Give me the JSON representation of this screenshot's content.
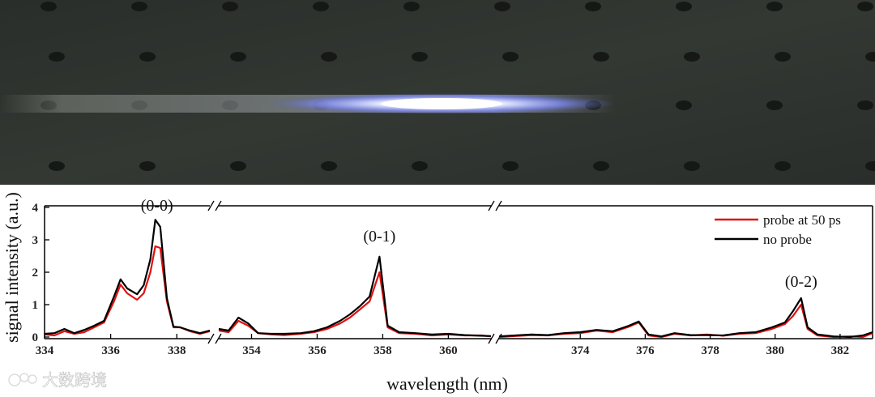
{
  "watermark": "大数跨境",
  "chart_data": {
    "type": "line",
    "xlabel": "wavelength (nm)",
    "ylabel": "signal intensity (a.u.)",
    "ylim": [
      0,
      4
    ],
    "yticks": [
      0,
      1,
      2,
      3,
      4
    ],
    "grid": false,
    "legend_position": "top-right",
    "colors": {
      "probe at 50 ps": "#e01010",
      "no probe": "#000000"
    },
    "panels": [
      {
        "xlim": [
          334,
          339
        ],
        "xticks": [
          334,
          336,
          338
        ]
      },
      {
        "xlim": [
          353,
          361.3
        ],
        "xticks": [
          354,
          356,
          358,
          360
        ]
      },
      {
        "xlim": [
          371.5,
          383
        ],
        "xticks": [
          374,
          376,
          378,
          380,
          382
        ]
      }
    ],
    "annotations": [
      {
        "text": "(0-0)",
        "x": 337.4,
        "y": 3.9
      },
      {
        "text": "(0-1)",
        "x": 357.9,
        "y": 2.95
      },
      {
        "text": "(0-2)",
        "x": 380.8,
        "y": 1.55
      }
    ],
    "series": [
      {
        "name": "probe at 50 ps",
        "segments": [
          [
            [
              334,
              0.08
            ],
            [
              334.3,
              0.05
            ],
            [
              334.6,
              0.18
            ],
            [
              334.9,
              0.1
            ],
            [
              335.2,
              0.15
            ],
            [
              335.5,
              0.3
            ],
            [
              335.8,
              0.45
            ],
            [
              336.1,
              1.1
            ],
            [
              336.3,
              1.62
            ],
            [
              336.5,
              1.35
            ],
            [
              336.8,
              1.15
            ],
            [
              337.0,
              1.35
            ],
            [
              337.2,
              2.0
            ],
            [
              337.35,
              2.8
            ],
            [
              337.5,
              2.75
            ],
            [
              337.7,
              1.1
            ],
            [
              337.9,
              0.3
            ],
            [
              338.1,
              0.3
            ],
            [
              338.4,
              0.18
            ],
            [
              338.7,
              0.1
            ],
            [
              339,
              0.18
            ]
          ],
          [
            [
              353,
              0.2
            ],
            [
              353.3,
              0.15
            ],
            [
              353.6,
              0.5
            ],
            [
              353.9,
              0.35
            ],
            [
              354.2,
              0.12
            ],
            [
              354.6,
              0.08
            ],
            [
              355.0,
              0.06
            ],
            [
              355.5,
              0.1
            ],
            [
              355.9,
              0.15
            ],
            [
              356.3,
              0.25
            ],
            [
              356.7,
              0.42
            ],
            [
              357.0,
              0.6
            ],
            [
              357.3,
              0.85
            ],
            [
              357.6,
              1.1
            ],
            [
              357.9,
              2.0
            ],
            [
              358.15,
              0.3
            ],
            [
              358.5,
              0.12
            ],
            [
              359.0,
              0.1
            ],
            [
              359.5,
              0.05
            ],
            [
              360.0,
              0.08
            ],
            [
              360.5,
              0.05
            ],
            [
              361.0,
              0.05
            ],
            [
              361.3,
              0.02
            ]
          ],
          [
            [
              371.5,
              0.0
            ],
            [
              372.0,
              0.03
            ],
            [
              372.5,
              0.06
            ],
            [
              373.0,
              0.05
            ],
            [
              373.5,
              0.1
            ],
            [
              374.0,
              0.12
            ],
            [
              374.5,
              0.2
            ],
            [
              375.0,
              0.15
            ],
            [
              375.5,
              0.32
            ],
            [
              375.8,
              0.45
            ],
            [
              376.1,
              0.05
            ],
            [
              376.5,
              0.0
            ],
            [
              376.9,
              0.1
            ],
            [
              377.4,
              0.05
            ],
            [
              377.9,
              0.08
            ],
            [
              378.4,
              0.04
            ],
            [
              378.9,
              0.1
            ],
            [
              379.4,
              0.12
            ],
            [
              379.9,
              0.25
            ],
            [
              380.3,
              0.4
            ],
            [
              380.55,
              0.65
            ],
            [
              380.8,
              1.0
            ],
            [
              381.0,
              0.25
            ],
            [
              381.3,
              0.05
            ],
            [
              381.8,
              0.0
            ],
            [
              382.3,
              0.02
            ],
            [
              382.7,
              0.0
            ],
            [
              383,
              0.12
            ]
          ]
        ]
      },
      {
        "name": "no probe",
        "segments": [
          [
            [
              334,
              0.1
            ],
            [
              334.3,
              0.12
            ],
            [
              334.6,
              0.25
            ],
            [
              334.9,
              0.12
            ],
            [
              335.2,
              0.22
            ],
            [
              335.5,
              0.35
            ],
            [
              335.8,
              0.5
            ],
            [
              336.1,
              1.25
            ],
            [
              336.3,
              1.78
            ],
            [
              336.5,
              1.5
            ],
            [
              336.8,
              1.32
            ],
            [
              337.0,
              1.6
            ],
            [
              337.2,
              2.4
            ],
            [
              337.35,
              3.62
            ],
            [
              337.5,
              3.4
            ],
            [
              337.7,
              1.2
            ],
            [
              337.9,
              0.32
            ],
            [
              338.1,
              0.3
            ],
            [
              338.4,
              0.2
            ],
            [
              338.7,
              0.12
            ],
            [
              339,
              0.2
            ]
          ],
          [
            [
              353,
              0.25
            ],
            [
              353.3,
              0.2
            ],
            [
              353.6,
              0.6
            ],
            [
              353.9,
              0.42
            ],
            [
              354.2,
              0.12
            ],
            [
              354.6,
              0.1
            ],
            [
              355.0,
              0.1
            ],
            [
              355.5,
              0.12
            ],
            [
              355.9,
              0.18
            ],
            [
              356.3,
              0.3
            ],
            [
              356.7,
              0.5
            ],
            [
              357.0,
              0.7
            ],
            [
              357.3,
              0.95
            ],
            [
              357.6,
              1.25
            ],
            [
              357.9,
              2.48
            ],
            [
              358.15,
              0.35
            ],
            [
              358.5,
              0.15
            ],
            [
              359.0,
              0.12
            ],
            [
              359.5,
              0.08
            ],
            [
              360.0,
              0.1
            ],
            [
              360.5,
              0.06
            ],
            [
              361.0,
              0.04
            ],
            [
              361.3,
              0.03
            ]
          ],
          [
            [
              371.5,
              0.02
            ],
            [
              372.0,
              0.05
            ],
            [
              372.5,
              0.08
            ],
            [
              373.0,
              0.06
            ],
            [
              373.5,
              0.12
            ],
            [
              374.0,
              0.15
            ],
            [
              374.5,
              0.22
            ],
            [
              375.0,
              0.18
            ],
            [
              375.5,
              0.35
            ],
            [
              375.8,
              0.48
            ],
            [
              376.1,
              0.08
            ],
            [
              376.5,
              0.02
            ],
            [
              376.9,
              0.12
            ],
            [
              377.4,
              0.06
            ],
            [
              377.9,
              0.06
            ],
            [
              378.4,
              0.05
            ],
            [
              378.9,
              0.12
            ],
            [
              379.4,
              0.15
            ],
            [
              379.9,
              0.3
            ],
            [
              380.3,
              0.45
            ],
            [
              380.55,
              0.8
            ],
            [
              380.8,
              1.2
            ],
            [
              381.0,
              0.3
            ],
            [
              381.3,
              0.08
            ],
            [
              381.8,
              0.02
            ],
            [
              382.3,
              0.0
            ],
            [
              382.7,
              0.05
            ],
            [
              383,
              0.15
            ]
          ]
        ]
      }
    ]
  }
}
